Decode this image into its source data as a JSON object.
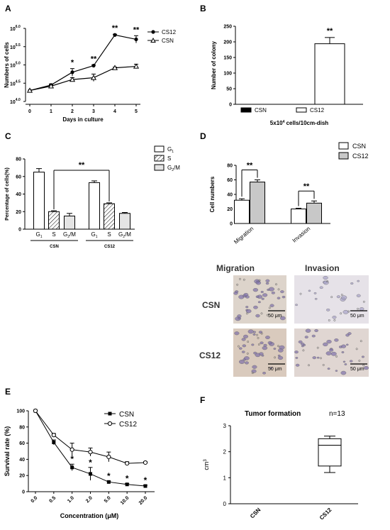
{
  "panel_letters": {
    "a": "A",
    "b": "B",
    "c": "C",
    "d": "D",
    "e": "E",
    "f": "F"
  },
  "colors": {
    "ink": "#000000",
    "grey": "#c8c8c8",
    "light": "#e4e4e4",
    "micro_bg": "#e6dfd6",
    "stain": "#8a7fb8"
  },
  "micrographs": {
    "col_labels": [
      "Migration",
      "Invasion"
    ],
    "row_labels": [
      "CSN",
      "CS12"
    ],
    "scale_bar": "50 μm"
  },
  "chart_data": [
    {
      "id": "A",
      "type": "line",
      "xlabel": "Days in culture",
      "ylabel": "Numbers of cells",
      "x": [
        0,
        1,
        2,
        3,
        4,
        5
      ],
      "y_ticks": [
        "10",
        "10",
        "10",
        "10",
        "10"
      ],
      "y_tick_exps": [
        "4.0",
        "4.5",
        "5.0",
        "5.5",
        "6.0"
      ],
      "ylim": [
        4.0,
        6.0
      ],
      "log_scale": true,
      "series": [
        {
          "name": "CS12",
          "marker": "circle",
          "values": [
            4.3,
            4.45,
            4.8,
            4.98,
            5.82,
            5.7
          ],
          "err": [
            0,
            0.03,
            0.1,
            0.02,
            0.02,
            0.1
          ]
        },
        {
          "name": "CSN",
          "marker": "triangle",
          "values": [
            4.3,
            4.42,
            4.6,
            4.65,
            4.92,
            4.96
          ],
          "err": [
            0,
            0.03,
            0.05,
            0.1,
            0.02,
            0.06
          ]
        }
      ],
      "annotations": [
        {
          "x": 2,
          "text": "*"
        },
        {
          "x": 3,
          "text": "**"
        },
        {
          "x": 4,
          "text": "**"
        },
        {
          "x": 5,
          "text": "**"
        }
      ],
      "legend": "top-right"
    },
    {
      "id": "B",
      "type": "bar",
      "ylabel": "Number of colony",
      "xlabel_html_pre": "5x10",
      "xlabel_sup": "4",
      "xlabel_post": " cells/10cm-dish",
      "series": [
        {
          "name": "CSN",
          "fill": "black",
          "value": 0,
          "err": 0
        },
        {
          "name": "CS12",
          "fill": "white",
          "value": 194,
          "err": 20
        }
      ],
      "y_ticks": [
        0,
        50,
        100,
        150,
        200,
        250
      ],
      "ylim": [
        0,
        250
      ],
      "annotations": [
        {
          "series": "CS12",
          "text": "**"
        }
      ],
      "legend": "bottom"
    },
    {
      "id": "C",
      "type": "bar",
      "ylabel": "Percentage of cells(%)",
      "groups": [
        "CSN",
        "CS12"
      ],
      "categories": [
        "G1",
        "S",
        "G2/M"
      ],
      "legend_items": [
        {
          "label": "G",
          "sub": "1",
          "fill": "white"
        },
        {
          "label": "S",
          "sub": "",
          "fill": "hatch"
        },
        {
          "label": "G",
          "sub": "2",
          "suffix": "/M",
          "fill": "grey"
        }
      ],
      "values": {
        "CSN": [
          65,
          20,
          15
        ],
        "CS12": [
          53,
          29,
          18
        ]
      },
      "errors": {
        "CSN": [
          4,
          1,
          3
        ],
        "CS12": [
          2,
          1,
          1
        ]
      },
      "y_ticks": [
        0,
        20,
        40,
        60,
        80
      ],
      "ylim": [
        0,
        80
      ],
      "annotations": [
        {
          "text": "**",
          "between": [
            "CSN S",
            "CS12 S"
          ]
        }
      ],
      "legend": "top-right"
    },
    {
      "id": "D",
      "type": "bar",
      "ylabel": "Cell numbers",
      "categories": [
        "Migration",
        "Invasion"
      ],
      "series": [
        {
          "name": "CSN",
          "fill": "white",
          "values": [
            32,
            20
          ],
          "err": [
            2,
            1
          ]
        },
        {
          "name": "CS12",
          "fill": "grey",
          "values": [
            57,
            28
          ],
          "err": [
            3,
            3
          ]
        }
      ],
      "y_ticks": [
        0,
        20,
        40,
        60,
        80
      ],
      "ylim": [
        0,
        80
      ],
      "annotations": [
        {
          "category": "Migration",
          "text": "**"
        },
        {
          "category": "Invasion",
          "text": "**"
        }
      ],
      "legend": "top-right"
    },
    {
      "id": "E",
      "type": "line",
      "xlabel": "Concentration (μM)",
      "ylabel": "Survival rate (%)",
      "categories": [
        "0.0",
        "0.5",
        "1.0",
        "2.0",
        "5.0",
        "10.0",
        "20.0"
      ],
      "series": [
        {
          "name": "CSN",
          "marker": "square",
          "values": [
            100,
            61,
            30,
            22,
            12,
            9,
            7
          ],
          "err": [
            0,
            3,
            4,
            8,
            1,
            1,
            1
          ]
        },
        {
          "name": "CS12",
          "marker": "open-circle",
          "values": [
            100,
            70,
            52,
            49,
            43,
            35,
            36
          ],
          "err": [
            0,
            2,
            8,
            5,
            6,
            2,
            1
          ]
        }
      ],
      "y_ticks": [
        0,
        20,
        40,
        60,
        80,
        100
      ],
      "ylim": [
        0,
        100
      ],
      "annotations": [
        {
          "x": "1.0",
          "text": "*"
        },
        {
          "x": "2.0",
          "text": "*"
        },
        {
          "x": "5.0",
          "text": "*"
        },
        {
          "x": "10.0",
          "text": "*"
        },
        {
          "x": "20.0",
          "text": "*"
        }
      ],
      "legend": "top-right"
    },
    {
      "id": "F",
      "type": "box",
      "title": "Tumor formation",
      "n_label": "n=13",
      "ylabel": "cm",
      "ylabel_sup": "3",
      "categories": [
        "CSN",
        "CS12"
      ],
      "boxes": [
        {
          "name": "CSN",
          "min": 0,
          "q1": 0,
          "median": 0,
          "q3": 0,
          "max": 0
        },
        {
          "name": "CS12",
          "min": 1.2,
          "q1": 1.45,
          "median": 2.25,
          "q3": 2.5,
          "max": 2.6
        }
      ],
      "y_ticks": [
        0,
        1,
        2,
        3
      ],
      "ylim": [
        0,
        3
      ]
    }
  ]
}
